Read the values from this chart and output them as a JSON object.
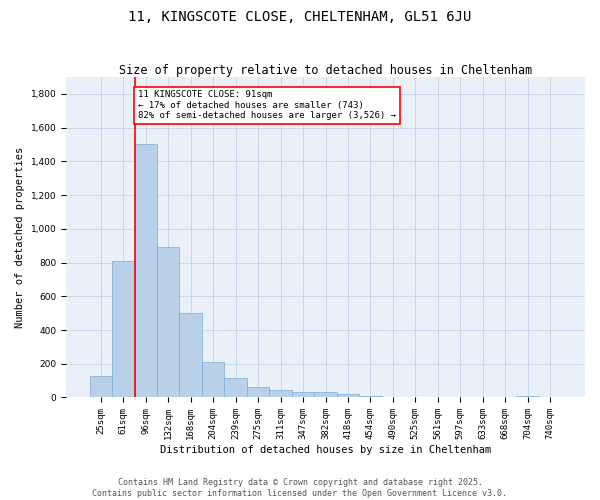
{
  "title": "11, KINGSCOTE CLOSE, CHELTENHAM, GL51 6JU",
  "subtitle": "Size of property relative to detached houses in Cheltenham",
  "xlabel": "Distribution of detached houses by size in Cheltenham",
  "ylabel": "Number of detached properties",
  "bar_color": "#b8d0e8",
  "bar_edge_color": "#7aadd4",
  "grid_color": "#c8d8ec",
  "background_color": "#eaf0f8",
  "categories": [
    "25sqm",
    "61sqm",
    "96sqm",
    "132sqm",
    "168sqm",
    "204sqm",
    "239sqm",
    "275sqm",
    "311sqm",
    "347sqm",
    "382sqm",
    "418sqm",
    "454sqm",
    "490sqm",
    "525sqm",
    "561sqm",
    "597sqm",
    "633sqm",
    "668sqm",
    "704sqm",
    "740sqm"
  ],
  "values": [
    130,
    810,
    1500,
    890,
    500,
    210,
    115,
    65,
    47,
    35,
    30,
    23,
    10,
    5,
    4,
    3,
    2,
    2,
    1,
    8,
    2
  ],
  "property_label": "11 KINGSCOTE CLOSE: 91sqm",
  "annotation_line1": "← 17% of detached houses are smaller (743)",
  "annotation_line2": "82% of semi-detached houses are larger (3,526) →",
  "vline_x_index": 1.5,
  "footer1": "Contains HM Land Registry data © Crown copyright and database right 2025.",
  "footer2": "Contains public sector information licensed under the Open Government Licence v3.0.",
  "ylim": [
    0,
    1900
  ],
  "yticks": [
    0,
    200,
    400,
    600,
    800,
    1000,
    1200,
    1400,
    1600,
    1800
  ],
  "title_fontsize": 10,
  "subtitle_fontsize": 8.5,
  "axis_label_fontsize": 7.5,
  "tick_fontsize": 6.5,
  "annotation_fontsize": 6.5,
  "footer_fontsize": 6.0
}
